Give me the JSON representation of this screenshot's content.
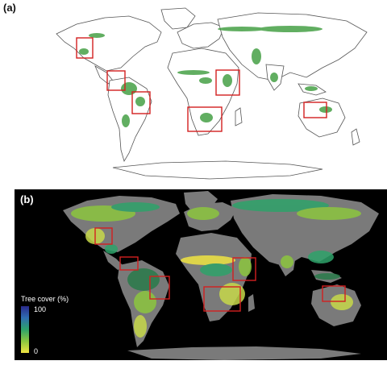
{
  "panels": [
    {
      "label": "(a)"
    },
    {
      "label": "(b)"
    }
  ],
  "legend": {
    "title": "Tree cover (%)",
    "max_label": "100",
    "min_label": "0",
    "colors": [
      "#2a2a8c",
      "#2f6db0",
      "#2ea36a",
      "#8cc63f",
      "#f0e442"
    ]
  },
  "colors": {
    "land_outline": "#555555",
    "land_fill_a": "#ffffff",
    "forest_green": "#3a9a3a",
    "highlight_box": "#d32020",
    "background_b": "#000000",
    "land_gray_b": "#7a7a7a"
  }
}
